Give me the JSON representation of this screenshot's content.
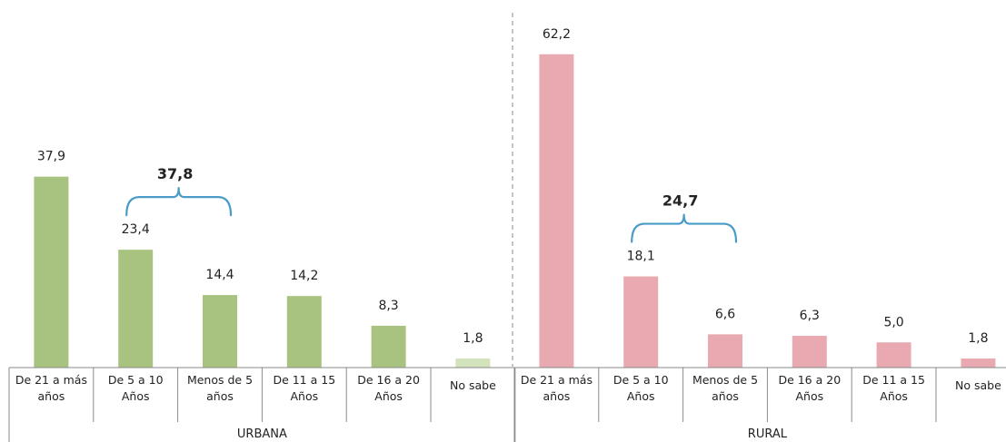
{
  "chart_data": {
    "type": "bar",
    "ylim": [
      0,
      65
    ],
    "panels": [
      {
        "group": "URBANA",
        "color": "#a8c37f",
        "light_color": "#d3e3bc",
        "categories": [
          [
            "De 21 a más",
            "años"
          ],
          [
            "De 5 a 10",
            "Años"
          ],
          [
            "Menos de 5",
            "años"
          ],
          [
            "De 11 a 15",
            "Años"
          ],
          [
            "De 16 a 20",
            "Años"
          ],
          [
            "No sabe"
          ]
        ],
        "values": [
          37.9,
          23.4,
          14.4,
          14.2,
          8.3,
          1.8
        ],
        "labels": [
          "37,9",
          "23,4",
          "14,4",
          "14,2",
          "8,3",
          "1,8"
        ],
        "light_index": 5,
        "bracket": {
          "from": 1,
          "to": 2,
          "label": "37,8"
        }
      },
      {
        "group": "RURAL",
        "color": "#e8a9b0",
        "light_color": "#e8a9b0",
        "categories": [
          [
            "De 21 a más",
            "años"
          ],
          [
            "De 5 a 10",
            "Años"
          ],
          [
            "Menos de 5",
            "años"
          ],
          [
            "De 16 a 20",
            "Años"
          ],
          [
            "De 11 a 15",
            "Años"
          ],
          [
            "No sabe"
          ]
        ],
        "values": [
          62.2,
          18.1,
          6.6,
          6.3,
          5.0,
          1.8
        ],
        "labels": [
          "62,2",
          "18,1",
          "6,6",
          "6,3",
          "5,0",
          "1,8"
        ],
        "light_index": -1,
        "bracket": {
          "from": 1,
          "to": 2,
          "label": "24,7"
        }
      }
    ]
  }
}
